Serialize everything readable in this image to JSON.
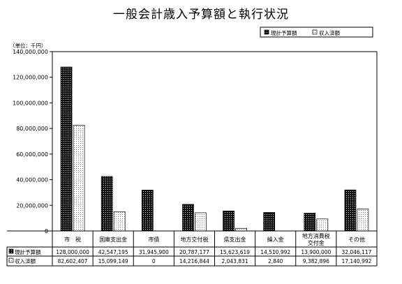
{
  "chart_data": {
    "type": "bar",
    "title": "一般会計歳入予算額と執行状況",
    "unit_label": "（単位：千円）",
    "categories": [
      [
        "市　税"
      ],
      [
        "国庫支出金"
      ],
      [
        "市債"
      ],
      [
        "地方交付税"
      ],
      [
        "県支出金"
      ],
      [
        "繰入金"
      ],
      [
        "地方消費税",
        "交付金"
      ],
      [
        "その他"
      ]
    ],
    "series": [
      {
        "name": "現計予算額",
        "pattern": "dark-dots",
        "values": [
          128000000,
          42547195,
          31945900,
          20787177,
          15623619,
          14510992,
          13900000,
          32046117
        ],
        "labels": [
          "128,000,000",
          "42,547,195",
          "31,945,900",
          "20,787,177",
          "15,623,619",
          "14,510,992",
          "13,900,000",
          "32,046,117"
        ]
      },
      {
        "name": "収入済額",
        "pattern": "light-dots",
        "values": [
          82602407,
          15099149,
          0,
          14216844,
          2043831,
          2840,
          9382896,
          17140992
        ],
        "labels": [
          "82,602,407",
          "15,099,149",
          "0",
          "14,216,844",
          "2,043,831",
          "2,840",
          "9,382,896",
          "17,140,992"
        ]
      }
    ],
    "ylim": [
      0,
      140000000
    ],
    "yticks": [
      0,
      20000000,
      40000000,
      60000000,
      80000000,
      100000000,
      120000000,
      140000000
    ],
    "ytick_labels": [
      "0",
      "20,000,000",
      "40,000,000",
      "60,000,000",
      "80,000,000",
      "100,000,000",
      "120,000,000",
      "140,000,000"
    ],
    "grid": false,
    "legend_position": "top-right"
  }
}
